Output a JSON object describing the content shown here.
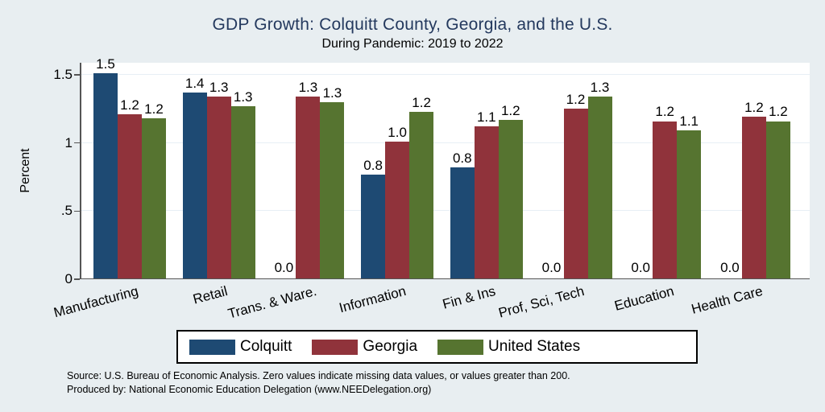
{
  "title": "GDP Growth: Colquitt County, Georgia, and the U.S.",
  "subtitle": "During Pandemic: 2019 to 2022",
  "source": {
    "line1": "Source: U.S. Bureau of Economic Analysis. Zero values indicate missing data values, or values greater than 200.",
    "line2": "Produced by: National Economic Education Delegation (www.NEEDelegation.org)"
  },
  "colors": {
    "background": "#e8eef1",
    "plot_background": "#ffffff",
    "gridline": "#e7eff5",
    "axis": "#555555",
    "title_text": "#24395e",
    "colquitt_blue": "#1e4a73",
    "georgia_red": "#90333b",
    "united_states_green": "#567430"
  },
  "chart_data": {
    "type": "bar",
    "title": "GDP Growth: Colquitt County, Georgia, and the U.S.",
    "subtitle": "During Pandemic: 2019 to 2022",
    "xlabel": "",
    "ylabel": "Percent",
    "ylim": [
      0,
      1.588
    ],
    "grid": true,
    "legend_position": "bottom",
    "yticks": [
      {
        "value": 0,
        "label": "0"
      },
      {
        "value": 0.5,
        "label": ".5"
      },
      {
        "value": 1,
        "label": "1"
      },
      {
        "value": 1.5,
        "label": "1.5"
      }
    ],
    "categories": [
      "Manufacturing",
      "Retail",
      "Trans. & Ware.",
      "Information",
      "Fin & Ins",
      "Prof, Sci, Tech",
      "Education",
      "Health Care"
    ],
    "series": [
      {
        "name": "Colquitt",
        "color": "#1e4a73",
        "values": [
          1.51,
          1.37,
          0,
          0.77,
          0.82,
          0,
          0,
          0
        ],
        "labels": [
          "1.5",
          "1.4",
          "0.0",
          "0.8",
          "0.8",
          "0.0",
          "0.0",
          "0.0"
        ]
      },
      {
        "name": "Georgia",
        "color": "#90333b",
        "values": [
          1.21,
          1.34,
          1.34,
          1.01,
          1.12,
          1.25,
          1.16,
          1.19
        ],
        "labels": [
          "1.2",
          "1.3",
          "1.3",
          "1.0",
          "1.1",
          "1.2",
          "1.2",
          "1.2"
        ]
      },
      {
        "name": "United States",
        "color": "#567430",
        "values": [
          1.18,
          1.27,
          1.3,
          1.23,
          1.17,
          1.34,
          1.09,
          1.16
        ],
        "labels": [
          "1.2",
          "1.3",
          "1.3",
          "1.2",
          "1.2",
          "1.3",
          "1.1",
          "1.2"
        ]
      }
    ]
  }
}
